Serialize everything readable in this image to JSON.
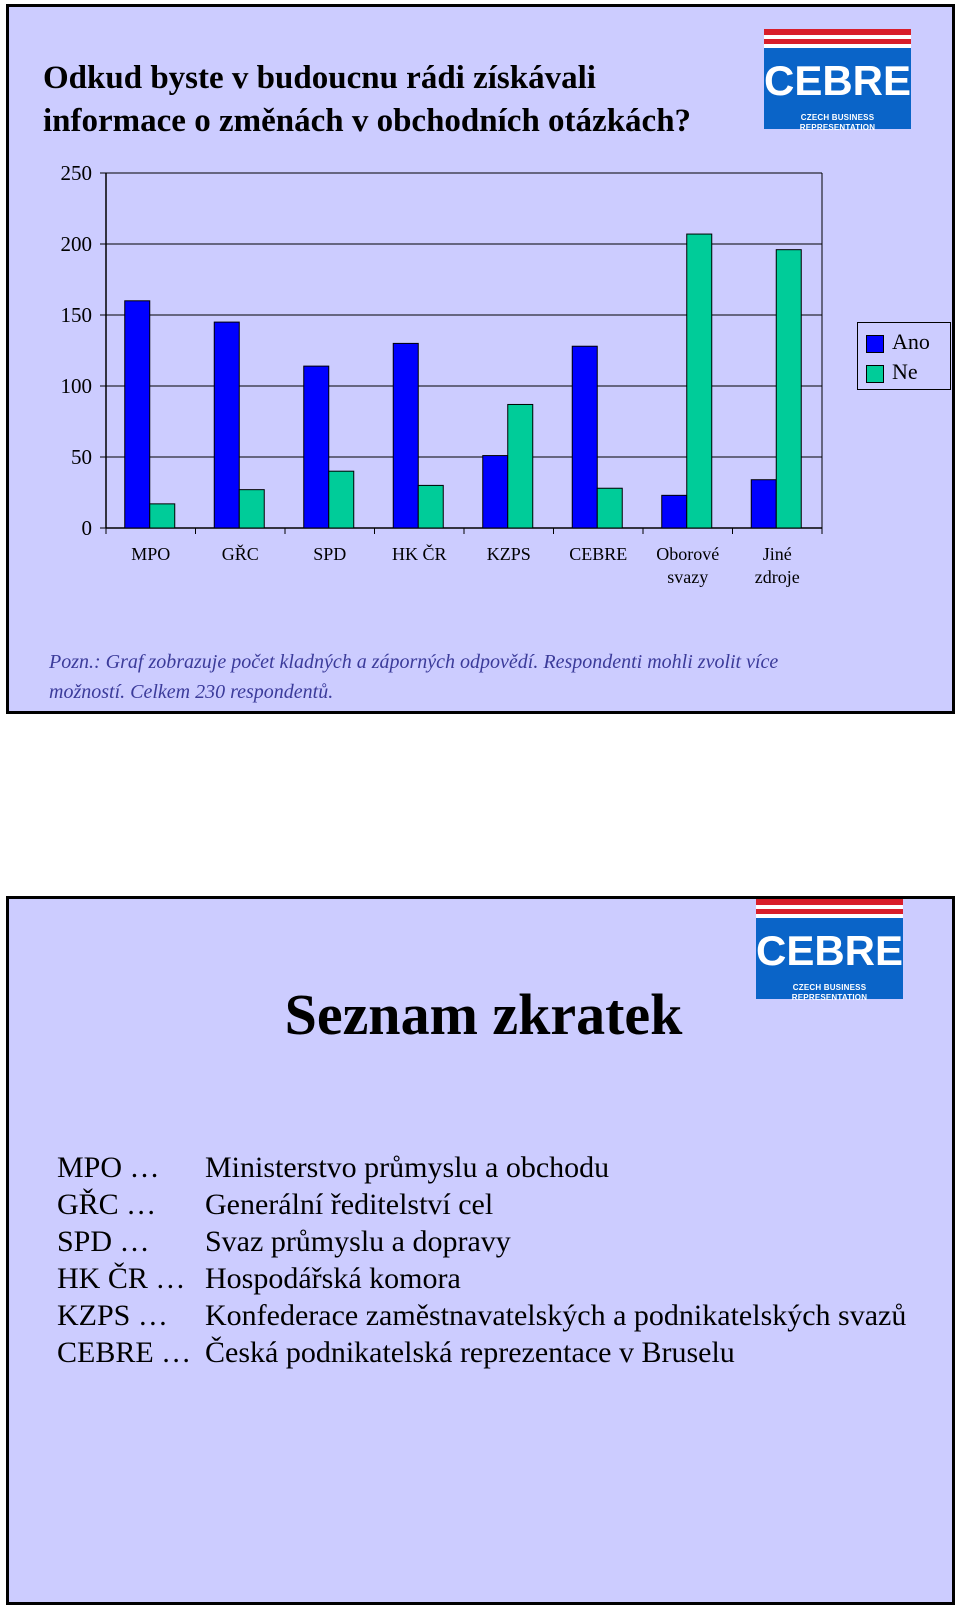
{
  "slide1": {
    "title_line1": "Odkud byste v budoucnu rádi získávali",
    "title_line2": "informace o změnách v obchodních otázkách?",
    "note_line1": "Pozn.: Graf zobrazuje počet kladných a záporných odpovědí. Respondenti mohli zvolit více",
    "note_line2": "možností. Celkem 230 respondentů."
  },
  "logo": {
    "word": "CEBRE",
    "subtitle": "CZECH BUSINESS REPRESENTATION"
  },
  "chart_data": {
    "type": "bar",
    "categories": [
      [
        "MPO"
      ],
      [
        "GŘC"
      ],
      [
        "SPD"
      ],
      [
        "HK ČR"
      ],
      [
        "KZPS"
      ],
      [
        "CEBRE"
      ],
      [
        "Oborové",
        "svazy"
      ],
      [
        "Jiné",
        "zdroje"
      ]
    ],
    "series": [
      {
        "name": "Ano",
        "color": "#0000ff",
        "values": [
          160,
          145,
          114,
          130,
          51,
          128,
          23,
          34
        ]
      },
      {
        "name": "Ne",
        "color": "#00cc99",
        "values": [
          17,
          27,
          40,
          30,
          87,
          28,
          207,
          196
        ]
      }
    ],
    "yticks": [
      0,
      50,
      100,
      150,
      200,
      250
    ],
    "ylim": [
      0,
      250
    ],
    "grid": true,
    "legend_position": "right"
  },
  "legend": {
    "ano": "Ano",
    "ne": "Ne"
  },
  "slide2": {
    "title": "Seznam zkratek",
    "items": [
      {
        "code": "MPO …",
        "text": "Ministerstvo průmyslu a obchodu"
      },
      {
        "code": "GŘC …",
        "text": "Generální ředitelství cel"
      },
      {
        "code": "SPD …",
        "text": "Svaz průmyslu a dopravy"
      },
      {
        "code": "HK ČR …",
        "text": "Hospodářská komora"
      },
      {
        "code": "KZPS …",
        "text": "Konfederace zaměstnavatelských a podnikatelských svazů"
      },
      {
        "code": "CEBRE …",
        "text": "Česká podnikatelská reprezentace v Bruselu"
      }
    ]
  }
}
